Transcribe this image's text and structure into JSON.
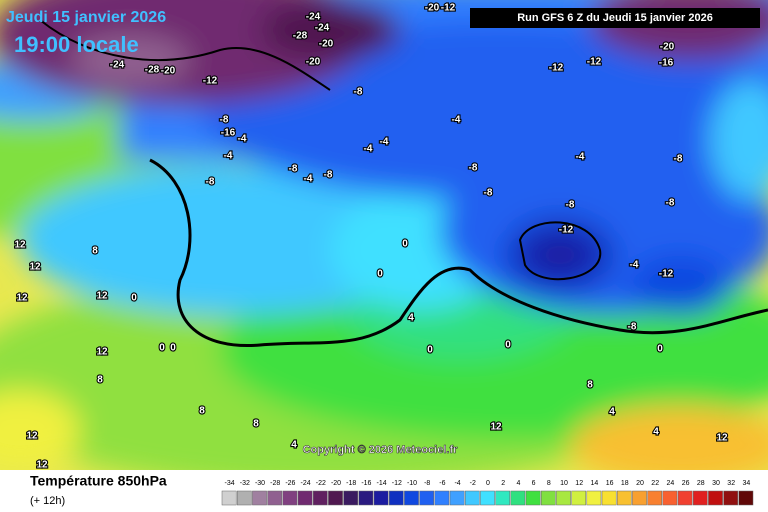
{
  "header": {
    "date": "Jeudi 15 janvier 2026",
    "time": "19:00 locale",
    "run": "Run GFS 6 Z du Jeudi 15 janvier 2026"
  },
  "copyright": "Copyright © 2026 Meteociel.fr",
  "footer": {
    "title": "Température 850hPa",
    "lead": "(+ 12h)"
  },
  "scale": {
    "ticks": [
      -34,
      -32,
      -30,
      -28,
      -26,
      -24,
      -22,
      -20,
      -18,
      -16,
      -14,
      -12,
      -10,
      -8,
      -6,
      -4,
      -2,
      0,
      2,
      4,
      6,
      8,
      10,
      12,
      14,
      16,
      18,
      20,
      22,
      24,
      26,
      28,
      30,
      32,
      34
    ],
    "colors": [
      "#d0d0d0",
      "#b0b0b0",
      "#a080a0",
      "#906090",
      "#804080",
      "#702a70",
      "#602060",
      "#501850",
      "#3a1a60",
      "#2a1a80",
      "#1c1ca0",
      "#1030c0",
      "#1048e0",
      "#2060f0",
      "#3080ff",
      "#40a0ff",
      "#40c8ff",
      "#40e0ff",
      "#30e8c0",
      "#30e080",
      "#40e040",
      "#80e040",
      "#a8e840",
      "#d0f040",
      "#f0f040",
      "#f8e030",
      "#f8c030",
      "#f8a030",
      "#f88030",
      "#f86030",
      "#f04030",
      "#e02020",
      "#c01010",
      "#901010",
      "#600808"
    ]
  },
  "map_labels": [
    -24,
    -28,
    -24,
    -20,
    -24,
    -28,
    -20,
    -12,
    -20,
    -8,
    -8,
    -16,
    -4,
    -4,
    -8,
    -8,
    -4,
    -8,
    -4,
    -4,
    -4,
    -8,
    -8,
    -12,
    -12,
    -4,
    -8,
    -12,
    -8,
    -8,
    -4,
    -12,
    -8,
    0,
    0,
    0,
    0,
    0,
    4,
    0,
    0,
    0,
    4,
    4,
    8,
    8,
    8,
    12,
    12,
    12,
    12,
    12,
    8,
    12,
    12,
    12,
    12,
    8,
    4,
    -20,
    -16,
    -20,
    -12
  ]
}
